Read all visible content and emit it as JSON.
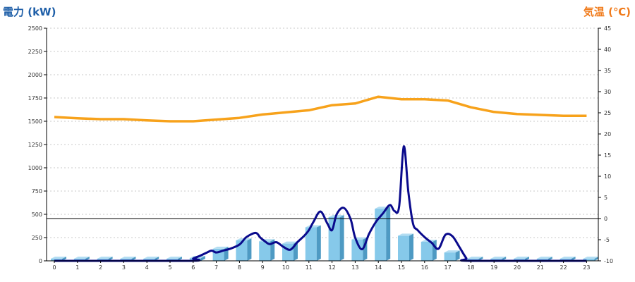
{
  "colors": {
    "left_title": "#1F5FA8",
    "right_title": "#F07A1A",
    "power_line": "#0A0A8C",
    "temp_line": "#F7A21B",
    "bar_front": "#86C9EA",
    "bar_side": "#4E9AC3",
    "bar_top": "#B3DDF2",
    "grid": "#C8C8C8",
    "axis": "#000000"
  },
  "chart_data": {
    "type": "bar",
    "title": "",
    "left_axis": {
      "label": "電力 (kW)",
      "min": 0,
      "max": 2500,
      "step": 250
    },
    "right_axis": {
      "label": "気温 (℃)",
      "min": -10,
      "max": 45,
      "step": 5
    },
    "grid": true,
    "x_categories": [
      "0",
      "1",
      "2",
      "3",
      "4",
      "5",
      "6",
      "7",
      "8",
      "9",
      "10",
      "11",
      "12",
      "13",
      "14",
      "15",
      "16",
      "17",
      "18",
      "19",
      "20",
      "21",
      "22",
      "23"
    ],
    "hourly_power_kw": [
      15,
      15,
      15,
      15,
      15,
      15,
      30,
      130,
      220,
      210,
      185,
      360,
      470,
      230,
      560,
      270,
      205,
      90,
      15,
      15,
      15,
      15,
      15,
      15
    ],
    "power_trend_kw": [
      [
        0,
        0
      ],
      [
        5.8,
        0
      ],
      [
        6.0,
        25
      ],
      [
        6.3,
        55
      ],
      [
        6.6,
        90
      ],
      [
        6.8,
        110
      ],
      [
        7.0,
        90
      ],
      [
        7.3,
        110
      ],
      [
        7.6,
        130
      ],
      [
        8.0,
        175
      ],
      [
        8.3,
        255
      ],
      [
        8.7,
        300
      ],
      [
        8.9,
        250
      ],
      [
        9.1,
        210
      ],
      [
        9.3,
        180
      ],
      [
        9.6,
        200
      ],
      [
        9.9,
        150
      ],
      [
        10.2,
        120
      ],
      [
        10.5,
        200
      ],
      [
        10.8,
        270
      ],
      [
        11.0,
        330
      ],
      [
        11.2,
        420
      ],
      [
        11.5,
        530
      ],
      [
        11.8,
        400
      ],
      [
        12.0,
        330
      ],
      [
        12.2,
        500
      ],
      [
        12.5,
        570
      ],
      [
        12.8,
        450
      ],
      [
        13.0,
        250
      ],
      [
        13.3,
        125
      ],
      [
        13.6,
        290
      ],
      [
        13.9,
        420
      ],
      [
        14.2,
        510
      ],
      [
        14.5,
        600
      ],
      [
        14.7,
        535
      ],
      [
        14.9,
        585
      ],
      [
        15.1,
        1230
      ],
      [
        15.3,
        735
      ],
      [
        15.5,
        400
      ],
      [
        15.7,
        330
      ],
      [
        16.0,
        255
      ],
      [
        16.3,
        195
      ],
      [
        16.6,
        130
      ],
      [
        16.9,
        280
      ],
      [
        17.2,
        265
      ],
      [
        17.5,
        150
      ],
      [
        17.8,
        30
      ],
      [
        18.0,
        0
      ],
      [
        23.0,
        0
      ]
    ],
    "temperature_c": [
      [
        0,
        24.0
      ],
      [
        1,
        23.7
      ],
      [
        2,
        23.5
      ],
      [
        3,
        23.5
      ],
      [
        4,
        23.2
      ],
      [
        5,
        23.0
      ],
      [
        6,
        23.0
      ],
      [
        7,
        23.4
      ],
      [
        8,
        23.8
      ],
      [
        9,
        24.6
      ],
      [
        10,
        25.1
      ],
      [
        11,
        25.6
      ],
      [
        12,
        26.8
      ],
      [
        13,
        27.2
      ],
      [
        14,
        28.8
      ],
      [
        15,
        28.2
      ],
      [
        16,
        28.2
      ],
      [
        17,
        27.9
      ],
      [
        18,
        26.3
      ],
      [
        19,
        25.2
      ],
      [
        20,
        24.7
      ],
      [
        21,
        24.5
      ],
      [
        22,
        24.3
      ],
      [
        23,
        24.3
      ]
    ],
    "reference_line_c": 0
  }
}
